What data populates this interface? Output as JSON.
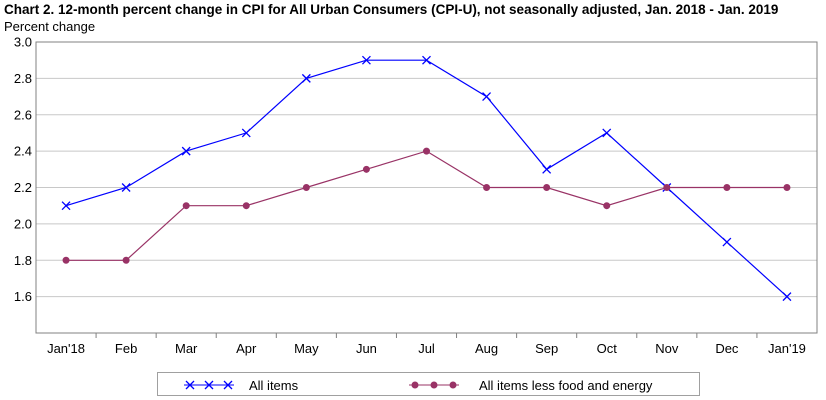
{
  "chart_data": {
    "type": "line",
    "title": "Chart 2. 12-month percent change in CPI for All Urban Consumers (CPI-U), not seasonally adjusted, Jan. 2018 - Jan. 2019",
    "ylabel": "Percent change",
    "xlabel": "",
    "categories": [
      "Jan'18",
      "Feb",
      "Mar",
      "Apr",
      "May",
      "Jun",
      "Jul",
      "Aug",
      "Sep",
      "Oct",
      "Nov",
      "Dec",
      "Jan'19"
    ],
    "ylim": [
      1.4,
      3.0
    ],
    "yticks": [
      "1.6",
      "1.8",
      "2.0",
      "2.2",
      "2.4",
      "2.6",
      "2.8",
      "3.0"
    ],
    "ytick_values": [
      1.6,
      1.8,
      2.0,
      2.2,
      2.4,
      2.6,
      2.8,
      3.0
    ],
    "grid": true,
    "legend_position": "bottom",
    "series": [
      {
        "name": "All items",
        "color": "#0000ff",
        "marker": "x",
        "values": [
          2.1,
          2.2,
          2.4,
          2.5,
          2.8,
          2.9,
          2.9,
          2.7,
          2.3,
          2.5,
          2.2,
          1.9,
          1.6
        ]
      },
      {
        "name": "All items less food and energy",
        "color": "#993366",
        "marker": "circle",
        "values": [
          1.8,
          1.8,
          2.1,
          2.1,
          2.2,
          2.3,
          2.4,
          2.2,
          2.2,
          2.1,
          2.2,
          2.2,
          2.2
        ]
      }
    ]
  }
}
